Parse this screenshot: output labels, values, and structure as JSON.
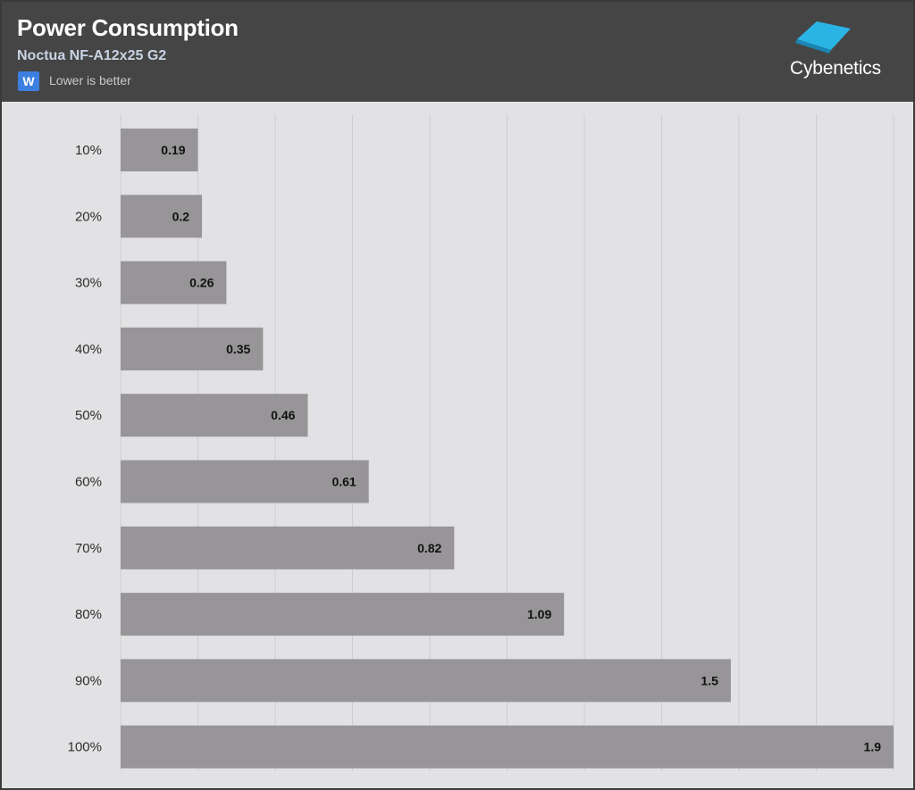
{
  "header": {
    "title": "Power Consumption",
    "subtitle": "Noctua NF-A12x25 G2",
    "unit_badge": "W",
    "note": "Lower is better",
    "logo_text": "Cybenetics",
    "logo_icon": "cyan-diamond-logo-icon"
  },
  "colors": {
    "header_bg": "#454545",
    "plot_bg": "#e2e1e3",
    "bar": "#979597",
    "badge": "#3d7fe0",
    "logo_accent": "#29b6e8"
  },
  "chart_data": {
    "type": "bar",
    "orientation": "horizontal",
    "title": "Power Consumption",
    "subtitle": "Noctua NF-A12x25 G2",
    "categories": [
      "10%",
      "20%",
      "30%",
      "40%",
      "50%",
      "60%",
      "70%",
      "80%",
      "90%",
      "100%"
    ],
    "values": [
      0.19,
      0.2,
      0.26,
      0.35,
      0.46,
      0.61,
      0.82,
      1.09,
      1.5,
      1.9
    ],
    "xlim": [
      0,
      1.9
    ],
    "grid": true,
    "data_labels": true
  }
}
